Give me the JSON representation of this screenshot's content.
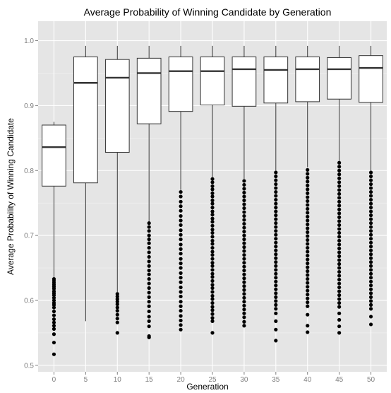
{
  "chart_data": {
    "type": "boxplot",
    "title": "Average Probability of Winning Candidate by Generation",
    "xlabel": "Generation",
    "ylabel": "Average Probability of Winning Candidate",
    "categories": [
      "0",
      "5",
      "10",
      "15",
      "20",
      "25",
      "30",
      "35",
      "40",
      "45",
      "50"
    ],
    "ylim": [
      0.49,
      1.03
    ],
    "yticks": [
      "0.5",
      "0.6",
      "0.7",
      "0.8",
      "0.9",
      "1.0"
    ],
    "grid": true,
    "colors": {
      "panel": "#e5e5e5",
      "grid_major": "#ffffff",
      "grid_minor": "#f2f2f2",
      "box_fill": "#ffffff",
      "box_line": "#333333",
      "outlier": "#000000"
    },
    "boxes": [
      {
        "generation": "0",
        "lower_whisker": 0.635,
        "q1": 0.776,
        "median": 0.836,
        "q3": 0.87,
        "upper_whisker": 0.875,
        "outliers": [
          0.633,
          0.63,
          0.627,
          0.624,
          0.621,
          0.618,
          0.614,
          0.611,
          0.608,
          0.604,
          0.6,
          0.596,
          0.593,
          0.589,
          0.583,
          0.577,
          0.571,
          0.566,
          0.561,
          0.556,
          0.548,
          0.535,
          0.517
        ]
      },
      {
        "generation": "5",
        "lower_whisker": 0.568,
        "q1": 0.781,
        "median": 0.935,
        "q3": 0.975,
        "upper_whisker": 0.992,
        "outliers": []
      },
      {
        "generation": "10",
        "lower_whisker": 0.613,
        "q1": 0.828,
        "median": 0.943,
        "q3": 0.971,
        "upper_whisker": 0.992,
        "outliers": [
          0.61,
          0.606,
          0.602,
          0.598,
          0.594,
          0.589,
          0.584,
          0.578,
          0.572,
          0.566,
          0.55
        ]
      },
      {
        "generation": "15",
        "lower_whisker": 0.722,
        "q1": 0.872,
        "median": 0.95,
        "q3": 0.973,
        "upper_whisker": 0.992,
        "outliers": [
          0.719,
          0.713,
          0.707,
          0.7,
          0.694,
          0.688,
          0.681,
          0.674,
          0.667,
          0.66,
          0.653,
          0.646,
          0.64,
          0.633,
          0.626,
          0.619,
          0.612,
          0.605,
          0.598,
          0.591,
          0.583,
          0.575,
          0.568,
          0.56,
          0.545,
          0.543
        ]
      },
      {
        "generation": "20",
        "lower_whisker": 0.77,
        "q1": 0.891,
        "median": 0.953,
        "q3": 0.975,
        "upper_whisker": 0.992,
        "outliers": [
          0.767,
          0.76,
          0.752,
          0.745,
          0.738,
          0.73,
          0.723,
          0.716,
          0.708,
          0.701,
          0.694,
          0.686,
          0.679,
          0.672,
          0.664,
          0.657,
          0.65,
          0.642,
          0.635,
          0.628,
          0.62,
          0.613,
          0.606,
          0.598,
          0.591,
          0.584,
          0.576,
          0.569,
          0.562,
          0.555
        ]
      },
      {
        "generation": "25",
        "lower_whisker": 0.79,
        "q1": 0.901,
        "median": 0.953,
        "q3": 0.975,
        "upper_whisker": 0.992,
        "outliers": [
          0.787,
          0.782,
          0.776,
          0.771,
          0.765,
          0.76,
          0.754,
          0.749,
          0.743,
          0.737,
          0.732,
          0.726,
          0.721,
          0.715,
          0.709,
          0.704,
          0.698,
          0.692,
          0.687,
          0.681,
          0.675,
          0.67,
          0.664,
          0.658,
          0.653,
          0.647,
          0.641,
          0.636,
          0.63,
          0.624,
          0.619,
          0.613,
          0.607,
          0.602,
          0.596,
          0.59,
          0.585,
          0.579,
          0.573,
          0.568,
          0.55
        ]
      },
      {
        "generation": "30",
        "lower_whisker": 0.787,
        "q1": 0.899,
        "median": 0.956,
        "q3": 0.975,
        "upper_whisker": 0.992,
        "outliers": [
          0.784,
          0.778,
          0.772,
          0.766,
          0.76,
          0.754,
          0.748,
          0.742,
          0.736,
          0.73,
          0.724,
          0.718,
          0.712,
          0.706,
          0.7,
          0.694,
          0.688,
          0.682,
          0.676,
          0.67,
          0.664,
          0.658,
          0.652,
          0.646,
          0.64,
          0.634,
          0.628,
          0.622,
          0.616,
          0.61,
          0.604,
          0.598,
          0.592,
          0.586,
          0.58,
          0.574,
          0.567,
          0.561
        ]
      },
      {
        "generation": "35",
        "lower_whisker": 0.8,
        "q1": 0.904,
        "median": 0.955,
        "q3": 0.975,
        "upper_whisker": 0.992,
        "outliers": [
          0.797,
          0.791,
          0.785,
          0.779,
          0.773,
          0.767,
          0.761,
          0.755,
          0.749,
          0.743,
          0.737,
          0.731,
          0.725,
          0.719,
          0.713,
          0.707,
          0.701,
          0.695,
          0.689,
          0.683,
          0.677,
          0.671,
          0.665,
          0.659,
          0.653,
          0.647,
          0.641,
          0.635,
          0.629,
          0.623,
          0.617,
          0.611,
          0.605,
          0.599,
          0.593,
          0.587,
          0.58,
          0.568,
          0.555,
          0.538
        ]
      },
      {
        "generation": "40",
        "lower_whisker": 0.805,
        "q1": 0.906,
        "median": 0.956,
        "q3": 0.975,
        "upper_whisker": 0.992,
        "outliers": [
          0.801,
          0.795,
          0.789,
          0.783,
          0.777,
          0.771,
          0.765,
          0.759,
          0.753,
          0.747,
          0.741,
          0.735,
          0.729,
          0.723,
          0.717,
          0.711,
          0.705,
          0.699,
          0.693,
          0.687,
          0.681,
          0.675,
          0.669,
          0.663,
          0.657,
          0.651,
          0.645,
          0.639,
          0.633,
          0.627,
          0.621,
          0.615,
          0.609,
          0.603,
          0.597,
          0.591,
          0.578,
          0.561,
          0.551
        ]
      },
      {
        "generation": "45",
        "lower_whisker": 0.815,
        "q1": 0.91,
        "median": 0.956,
        "q3": 0.974,
        "upper_whisker": 0.992,
        "outliers": [
          0.812,
          0.806,
          0.8,
          0.794,
          0.788,
          0.782,
          0.776,
          0.77,
          0.764,
          0.758,
          0.752,
          0.746,
          0.74,
          0.734,
          0.728,
          0.722,
          0.716,
          0.71,
          0.704,
          0.698,
          0.692,
          0.686,
          0.68,
          0.674,
          0.668,
          0.662,
          0.656,
          0.65,
          0.644,
          0.638,
          0.632,
          0.626,
          0.62,
          0.614,
          0.608,
          0.602,
          0.596,
          0.59,
          0.58,
          0.57,
          0.56,
          0.55
        ]
      },
      {
        "generation": "50",
        "lower_whisker": 0.8,
        "q1": 0.905,
        "median": 0.958,
        "q3": 0.977,
        "upper_whisker": 0.992,
        "outliers": [
          0.797,
          0.791,
          0.785,
          0.779,
          0.773,
          0.767,
          0.761,
          0.755,
          0.749,
          0.743,
          0.737,
          0.731,
          0.725,
          0.719,
          0.713,
          0.707,
          0.701,
          0.695,
          0.689,
          0.683,
          0.677,
          0.671,
          0.665,
          0.659,
          0.653,
          0.647,
          0.641,
          0.635,
          0.629,
          0.623,
          0.617,
          0.611,
          0.605,
          0.599,
          0.593,
          0.587,
          0.575,
          0.563
        ]
      }
    ]
  }
}
